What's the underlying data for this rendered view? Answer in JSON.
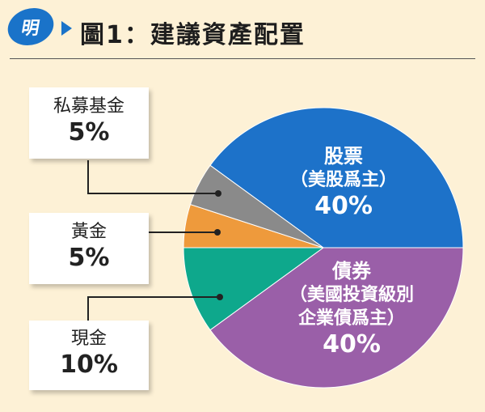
{
  "header": {
    "brand": "明",
    "title": "圖1：建議資產配置"
  },
  "chart_data": {
    "type": "pie",
    "title": "圖1：建議資產配置",
    "slices": [
      {
        "label": "股票（美股爲主）",
        "value": 40,
        "display": "40%",
        "color": "#1d72c9"
      },
      {
        "label": "債券（美國投資級別企業債爲主）",
        "value": 40,
        "display": "40%",
        "color": "#9a5fa8"
      },
      {
        "label": "現金",
        "value": 10,
        "display": "10%",
        "color": "#0ea88c"
      },
      {
        "label": "黃金",
        "value": 5,
        "display": "5%",
        "color": "#ee9a3c"
      },
      {
        "label": "私募基金",
        "value": 5,
        "display": "5%",
        "color": "#8a8a8a"
      }
    ],
    "labels": {
      "stocks_name": "股票",
      "stocks_sub": "（美股爲主）",
      "stocks_value": "40%",
      "bonds_name": "債券",
      "bonds_sub1": "（美國投資級別",
      "bonds_sub2": "企業債爲主）",
      "bonds_value": "40%",
      "private_name": "私募基金",
      "private_value": "5%",
      "gold_name": "黃金",
      "gold_value": "5%",
      "cash_name": "現金",
      "cash_value": "10%"
    }
  }
}
